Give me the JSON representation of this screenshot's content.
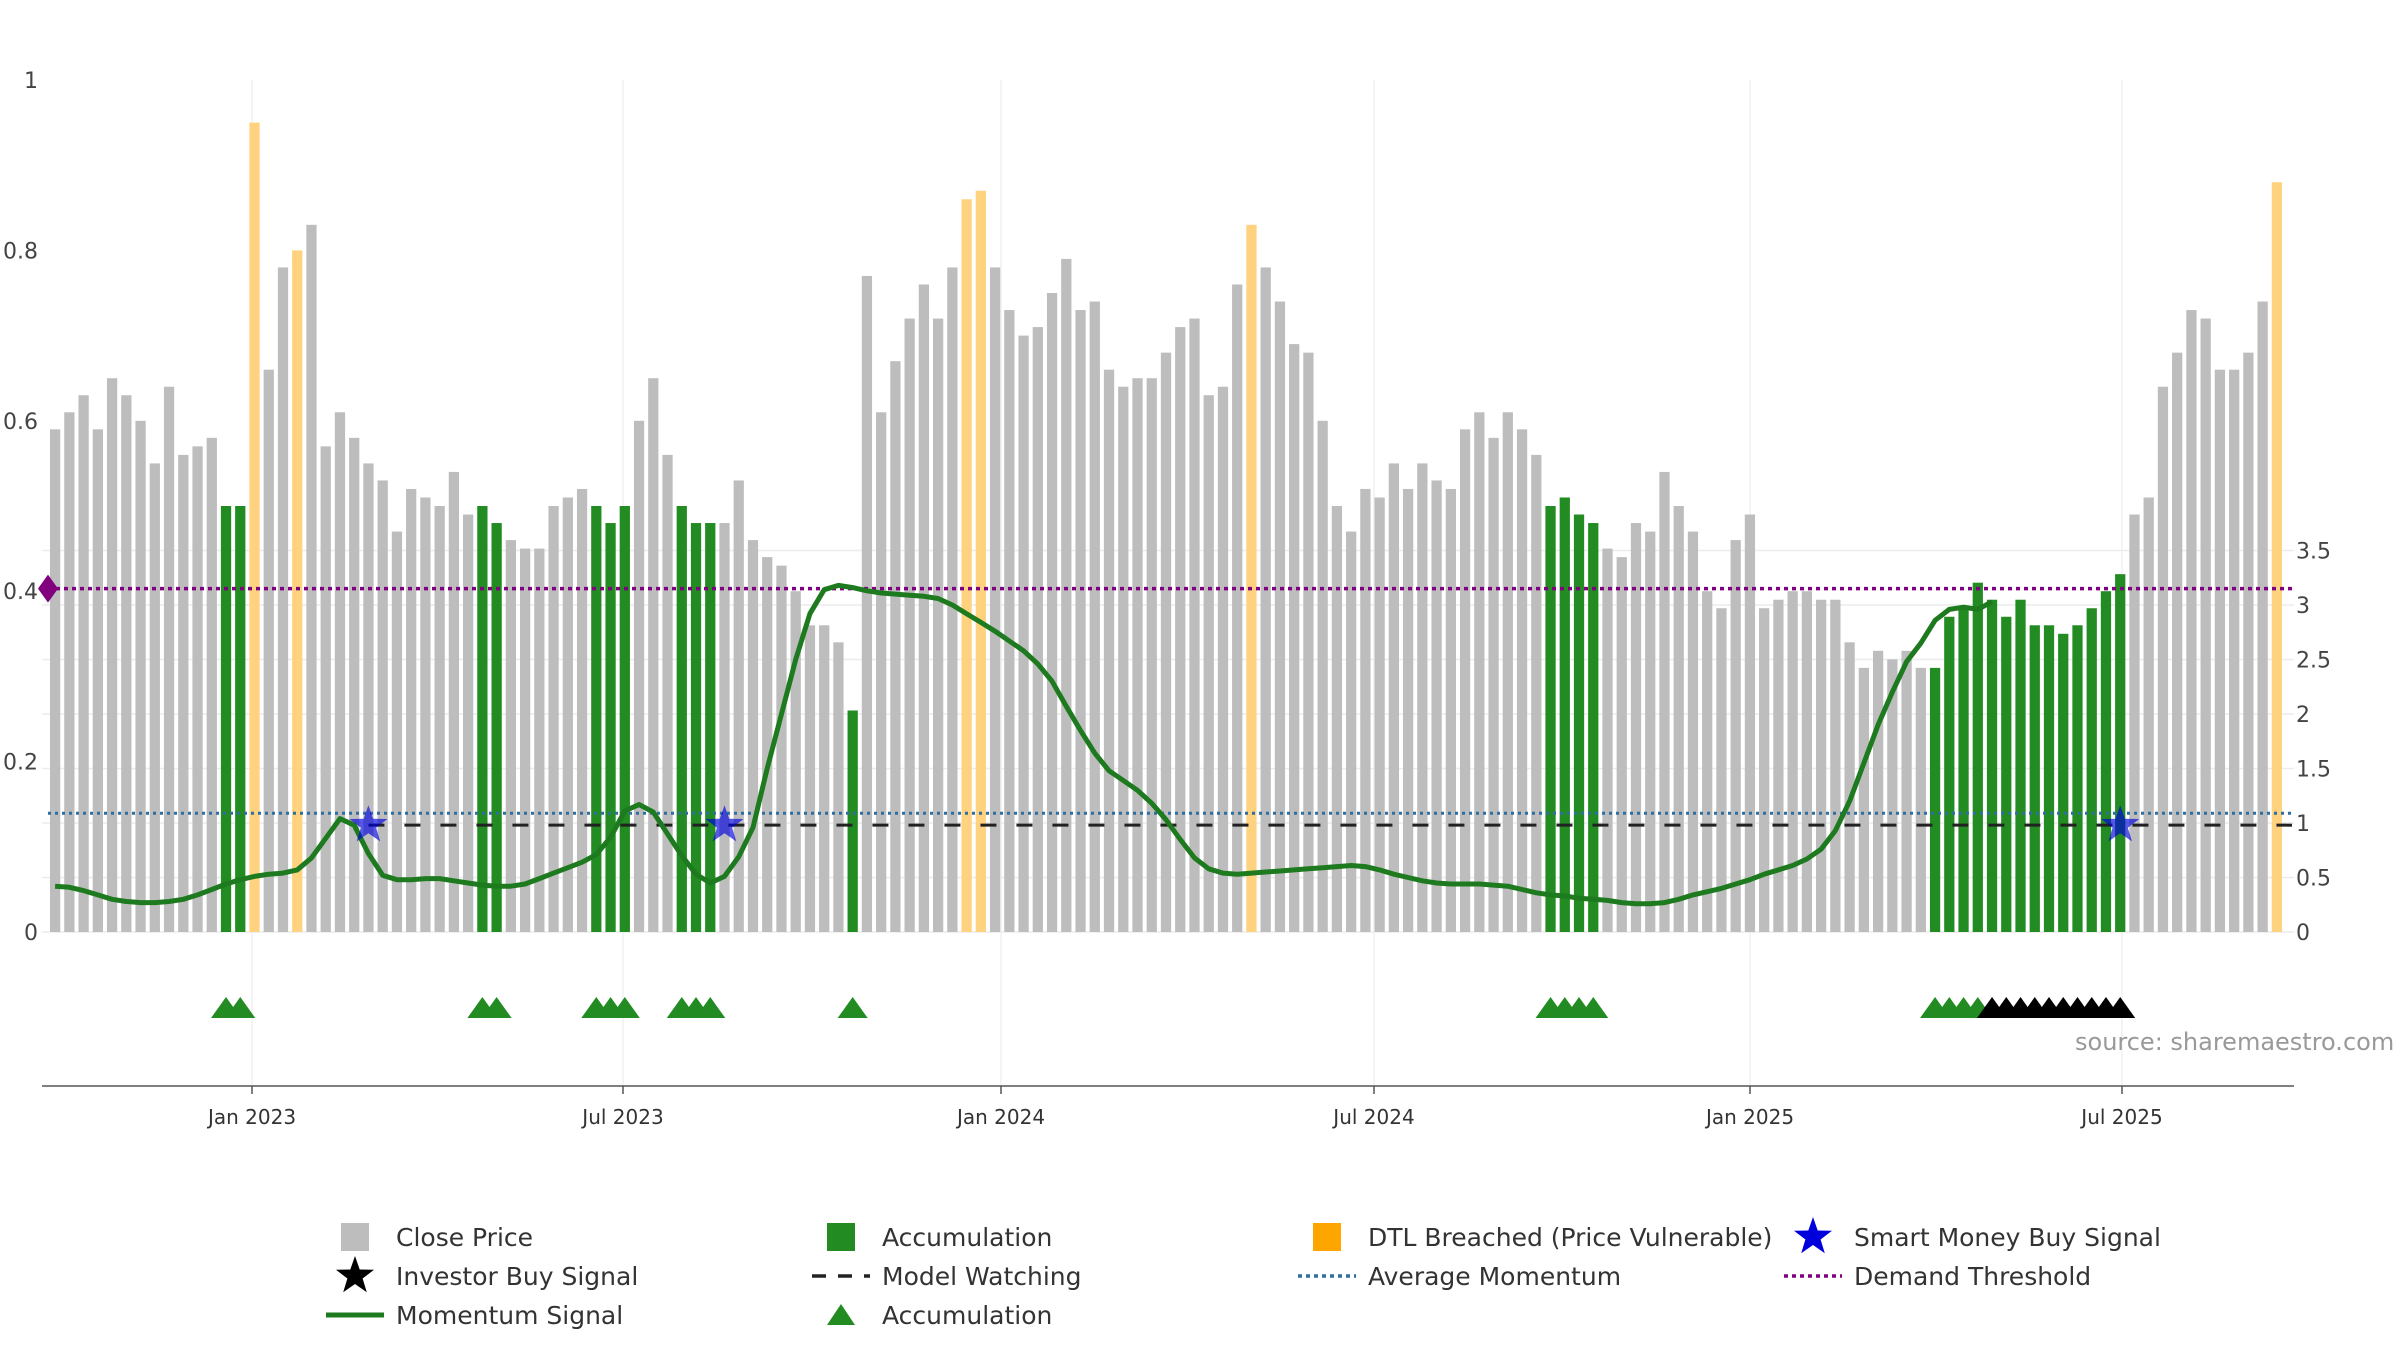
{
  "chart_data": {
    "type": "bar",
    "source_label": "source: sharemaestro.com",
    "left_axis": {
      "ticks": [
        "0",
        "0.2",
        "0.4",
        "0.6",
        "0.8",
        "1"
      ],
      "range": [
        0,
        1
      ]
    },
    "right_axis": {
      "ticks": [
        "0",
        "0.5",
        "1",
        "1.5",
        "2",
        "2.5",
        "3",
        "3.5"
      ],
      "range": [
        0,
        3.5
      ]
    },
    "x_axis": {
      "ticks": [
        "Jan 2023",
        "Jul 2023",
        "Jan 2024",
        "Jul 2024",
        "Jan 2025",
        "Jul 2025"
      ]
    },
    "grid": true,
    "colors": {
      "close": "#bdbdbd",
      "accumulation": "#228b22",
      "dtl": "#ffd27f",
      "momentum": "#1e7a1e",
      "smart_money": "#0000dd",
      "demand": "#800080",
      "avg_momentum": "#2f6f9f"
    },
    "close_price": [
      0.59,
      0.61,
      0.63,
      0.59,
      0.65,
      0.63,
      0.6,
      0.55,
      0.64,
      0.56,
      0.57,
      0.58,
      0.5,
      0.5,
      0.95,
      0.66,
      0.78,
      0.8,
      0.83,
      0.57,
      0.61,
      0.58,
      0.55,
      0.53,
      0.47,
      0.52,
      0.51,
      0.5,
      0.54,
      0.49,
      0.5,
      0.48,
      0.46,
      0.45,
      0.45,
      0.5,
      0.51,
      0.52,
      0.5,
      0.48,
      0.5,
      0.6,
      0.65,
      0.56,
      0.5,
      0.48,
      0.48,
      0.48,
      0.53,
      0.46,
      0.44,
      0.43,
      0.4,
      0.36,
      0.36,
      0.34,
      0.26,
      0.77,
      0.61,
      0.67,
      0.72,
      0.76,
      0.72,
      0.78,
      0.86,
      0.87,
      0.78,
      0.73,
      0.7,
      0.71,
      0.75,
      0.79,
      0.73,
      0.74,
      0.66,
      0.64,
      0.65,
      0.65,
      0.68,
      0.71,
      0.72,
      0.63,
      0.64,
      0.76,
      0.83,
      0.78,
      0.74,
      0.69,
      0.68,
      0.6,
      0.5,
      0.47,
      0.52,
      0.51,
      0.55,
      0.52,
      0.55,
      0.53,
      0.52,
      0.59,
      0.61,
      0.58,
      0.61,
      0.59,
      0.56,
      0.5,
      0.51,
      0.49,
      0.48,
      0.45,
      0.44,
      0.48,
      0.47,
      0.54,
      0.5,
      0.47,
      0.4,
      0.38,
      0.46,
      0.49,
      0.38,
      0.39,
      0.4,
      0.4,
      0.39,
      0.39,
      0.34,
      0.31,
      0.33,
      0.32,
      0.33,
      0.31,
      0.31,
      0.37,
      0.38,
      0.41,
      0.39,
      0.37,
      0.39,
      0.36,
      0.36,
      0.35,
      0.36,
      0.38,
      0.4,
      0.42,
      0.49,
      0.51,
      0.64,
      0.68,
      0.73,
      0.72,
      0.66,
      0.66,
      0.68,
      0.74,
      0.88
    ],
    "accumulation_indices": [
      12,
      13,
      30,
      31,
      38,
      39,
      40,
      44,
      45,
      46,
      56,
      105,
      106,
      107,
      108,
      132,
      133,
      134,
      135,
      136,
      137,
      138,
      139,
      140,
      141,
      142,
      143,
      144,
      145
    ],
    "dtl_indices": [
      14,
      17,
      64,
      65,
      84,
      156
    ],
    "momentum": [
      0.42,
      0.41,
      0.38,
      0.34,
      0.3,
      0.28,
      0.27,
      0.27,
      0.28,
      0.3,
      0.34,
      0.39,
      0.44,
      0.48,
      0.51,
      0.53,
      0.54,
      0.57,
      0.68,
      0.86,
      1.04,
      0.98,
      0.72,
      0.52,
      0.48,
      0.48,
      0.49,
      0.49,
      0.47,
      0.45,
      0.43,
      0.42,
      0.42,
      0.44,
      0.49,
      0.54,
      0.59,
      0.64,
      0.71,
      0.87,
      1.11,
      1.17,
      1.1,
      0.9,
      0.7,
      0.53,
      0.45,
      0.51,
      0.69,
      0.96,
      1.5,
      2.0,
      2.5,
      2.92,
      3.14,
      3.18,
      3.16,
      3.13,
      3.11,
      3.1,
      3.09,
      3.08,
      3.06,
      3.0,
      2.92,
      2.84,
      2.76,
      2.67,
      2.58,
      2.46,
      2.3,
      2.07,
      1.85,
      1.64,
      1.48,
      1.39,
      1.3,
      1.18,
      1.03,
      0.85,
      0.68,
      0.58,
      0.54,
      0.53,
      0.54,
      0.55,
      0.56,
      0.57,
      0.58,
      0.59,
      0.6,
      0.61,
      0.6,
      0.57,
      0.53,
      0.5,
      0.47,
      0.45,
      0.44,
      0.44,
      0.44,
      0.43,
      0.42,
      0.39,
      0.36,
      0.34,
      0.33,
      0.31,
      0.3,
      0.29,
      0.27,
      0.26,
      0.26,
      0.27,
      0.3,
      0.34,
      0.37,
      0.4,
      0.44,
      0.48,
      0.53,
      0.57,
      0.61,
      0.67,
      0.76,
      0.93,
      1.2,
      1.55,
      1.9,
      2.2,
      2.48,
      2.65,
      2.86,
      2.96,
      2.98,
      2.96,
      3.03
    ],
    "accum_triangles": [
      12,
      13,
      30,
      31,
      38,
      39,
      40,
      44,
      45,
      46,
      56,
      105,
      106,
      107,
      108,
      132,
      133,
      134,
      135
    ],
    "investor_triangles": [
      136,
      137,
      138,
      139,
      140,
      141,
      142,
      143,
      144,
      145
    ],
    "smart_money_indices": [
      22,
      47,
      145
    ],
    "model_watching_level": 0.98,
    "avg_momentum_level": 1.09,
    "demand_threshold_level": 3.15,
    "legend": [
      [
        "Close Price",
        "Accumulation",
        "DTL Breached (Price Vulnerable)",
        "Smart Money Buy Signal"
      ],
      [
        "Investor Buy Signal",
        "Model Watching",
        "Average Momentum",
        "Demand Threshold"
      ],
      [
        "Momentum Signal",
        "Accumulation"
      ]
    ]
  }
}
